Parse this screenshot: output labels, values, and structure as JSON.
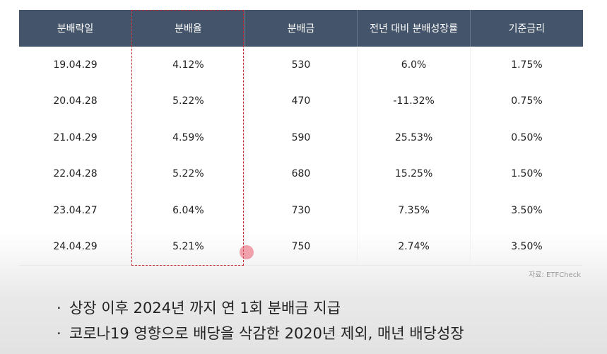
{
  "table": {
    "headers": [
      "분배락일",
      "분배율",
      "분배금",
      "전년 대비 분배성장률",
      "기준금리"
    ],
    "rows": [
      [
        "19.04.29",
        "4.12%",
        "530",
        "6.0%",
        "1.75%"
      ],
      [
        "20.04.28",
        "5.22%",
        "470",
        "-11.32%",
        "0.75%"
      ],
      [
        "21.04.29",
        "4.59%",
        "590",
        "25.53%",
        "0.50%"
      ],
      [
        "22.04.28",
        "5.22%",
        "680",
        "15.25%",
        "1.50%"
      ],
      [
        "23.04.27",
        "6.04%",
        "730",
        "7.35%",
        "3.50%"
      ],
      [
        "24.04.29",
        "5.21%",
        "750",
        "2.74%",
        "3.50%"
      ]
    ]
  },
  "source": "자료: ETFCheck",
  "bullets": [
    "상장 이후 2024년 까지 연 1회 분배금 지급",
    "코로나19 영향으로 배당을 삭감한 2020년 제외, 매년 배당성장"
  ],
  "colors": {
    "header_bg": "#44546a",
    "highlight_border": "#c0282d"
  }
}
